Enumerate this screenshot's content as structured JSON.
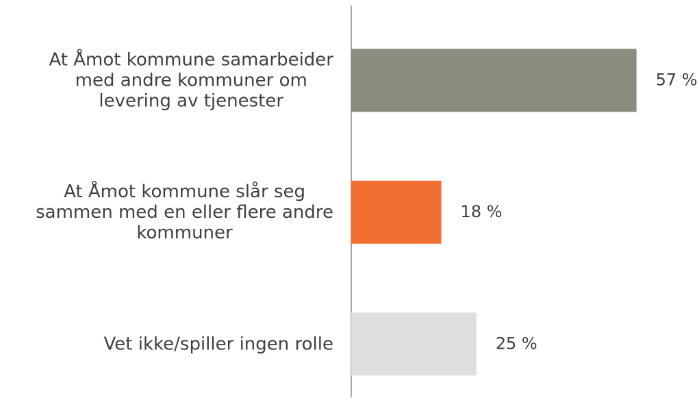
{
  "chart_data": {
    "type": "barh",
    "categories": [
      "At Åmot kommune samarbeider\nmed andre kommuner om\nlevering av tjenester",
      "At Åmot kommune slår seg\nsammen med en eller flere andre\nkommuner",
      "Vet ikke/spiller ingen rolle"
    ],
    "values": [
      57,
      18,
      25
    ],
    "value_labels": [
      "57 %",
      "18 %",
      "25 %"
    ],
    "colors": [
      "#8a8c7e",
      "#f26f33",
      "#dedede"
    ],
    "xlim": [
      0,
      68
    ]
  }
}
